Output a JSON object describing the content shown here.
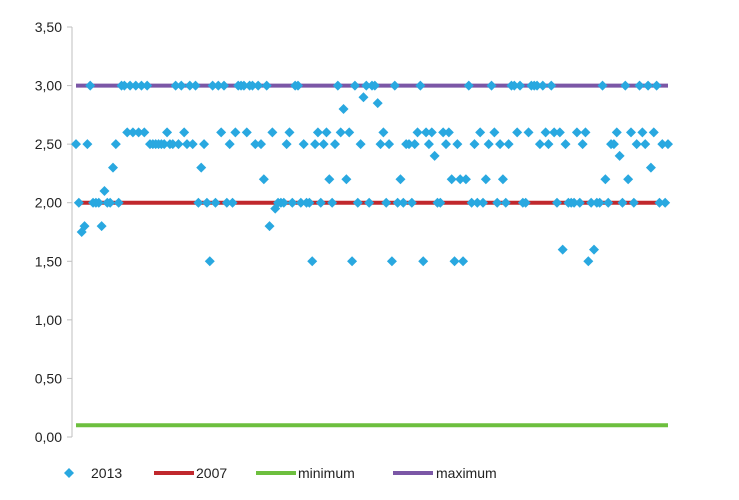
{
  "chart_data": {
    "type": "line",
    "title": "",
    "xlabel": "",
    "ylabel": "",
    "ylim": [
      0,
      3.5
    ],
    "y_ticks": [
      0,
      0.5,
      1,
      1.5,
      2,
      2.5,
      3,
      3.5
    ],
    "y_tick_labels": [
      "0,00",
      "0,50",
      "1,00",
      "1,50",
      "2,00",
      "2,50",
      "3,00",
      "3,50"
    ],
    "grid": false,
    "legend_position": "bottom",
    "legend": [
      {
        "name": "2013",
        "type": "scatter",
        "color": "#29a8e0"
      },
      {
        "name": "2007",
        "type": "line",
        "color": "#c0282d"
      },
      {
        "name": "minimum",
        "type": "line",
        "color": "#6dbf3e"
      },
      {
        "name": "maximum",
        "type": "line",
        "color": "#7b57a6"
      }
    ],
    "reference_lines": [
      {
        "name": "2007",
        "value": 2.0,
        "color": "#c0282d"
      },
      {
        "name": "minimum",
        "value": 0.1,
        "color": "#6dbf3e"
      },
      {
        "name": "maximum",
        "value": 3.0,
        "color": "#7b57a6"
      }
    ],
    "series": [
      {
        "name": "2013",
        "type": "scatter",
        "color": "#29a8e0",
        "points": [
          [
            1,
            2.5
          ],
          [
            2,
            2.0
          ],
          [
            3,
            1.75
          ],
          [
            4,
            1.8
          ],
          [
            5,
            2.5
          ],
          [
            6,
            3.0
          ],
          [
            7,
            2.0
          ],
          [
            8,
            2.0
          ],
          [
            9,
            2.0
          ],
          [
            10,
            1.8
          ],
          [
            11,
            2.1
          ],
          [
            12,
            2.0
          ],
          [
            13,
            2.0
          ],
          [
            14,
            2.3
          ],
          [
            15,
            2.5
          ],
          [
            16,
            2.0
          ],
          [
            17,
            3.0
          ],
          [
            18,
            3.0
          ],
          [
            19,
            2.6
          ],
          [
            20,
            3.0
          ],
          [
            21,
            2.6
          ],
          [
            22,
            3.0
          ],
          [
            23,
            2.6
          ],
          [
            24,
            3.0
          ],
          [
            25,
            2.6
          ],
          [
            26,
            3.0
          ],
          [
            27,
            2.5
          ],
          [
            28,
            2.5
          ],
          [
            29,
            2.5
          ],
          [
            30,
            2.5
          ],
          [
            31,
            2.5
          ],
          [
            32,
            2.5
          ],
          [
            33,
            2.6
          ],
          [
            34,
            2.5
          ],
          [
            35,
            2.5
          ],
          [
            36,
            3.0
          ],
          [
            37,
            2.5
          ],
          [
            38,
            3.0
          ],
          [
            39,
            2.6
          ],
          [
            40,
            2.5
          ],
          [
            41,
            3.0
          ],
          [
            42,
            2.5
          ],
          [
            43,
            3.0
          ],
          [
            44,
            2.0
          ],
          [
            45,
            2.3
          ],
          [
            46,
            2.5
          ],
          [
            47,
            2.0
          ],
          [
            48,
            1.5
          ],
          [
            49,
            3.0
          ],
          [
            50,
            2.0
          ],
          [
            51,
            3.0
          ],
          [
            52,
            2.6
          ],
          [
            53,
            3.0
          ],
          [
            54,
            2.0
          ],
          [
            55,
            2.5
          ],
          [
            56,
            2.0
          ],
          [
            57,
            2.6
          ],
          [
            58,
            3.0
          ],
          [
            59,
            3.0
          ],
          [
            60,
            3.0
          ],
          [
            61,
            2.6
          ],
          [
            62,
            3.0
          ],
          [
            63,
            3.0
          ],
          [
            64,
            2.5
          ],
          [
            65,
            3.0
          ],
          [
            66,
            2.5
          ],
          [
            67,
            2.2
          ],
          [
            68,
            3.0
          ],
          [
            69,
            1.8
          ],
          [
            70,
            2.6
          ],
          [
            71,
            1.95
          ],
          [
            72,
            2.0
          ],
          [
            73,
            2.0
          ],
          [
            74,
            2.0
          ],
          [
            75,
            2.5
          ],
          [
            76,
            2.6
          ],
          [
            77,
            2.0
          ],
          [
            78,
            3.0
          ],
          [
            79,
            3.0
          ],
          [
            80,
            2.0
          ],
          [
            81,
            2.5
          ],
          [
            82,
            2.0
          ],
          [
            83,
            2.0
          ],
          [
            84,
            1.5
          ],
          [
            85,
            2.5
          ],
          [
            86,
            2.6
          ],
          [
            87,
            2.0
          ],
          [
            88,
            2.5
          ],
          [
            89,
            2.6
          ],
          [
            90,
            2.2
          ],
          [
            91,
            2.0
          ],
          [
            92,
            2.5
          ],
          [
            93,
            3.0
          ],
          [
            94,
            2.6
          ],
          [
            95,
            2.8
          ],
          [
            96,
            2.2
          ],
          [
            97,
            2.6
          ],
          [
            98,
            1.5
          ],
          [
            99,
            3.0
          ],
          [
            100,
            2.0
          ],
          [
            101,
            2.5
          ],
          [
            102,
            2.9
          ],
          [
            103,
            3.0
          ],
          [
            104,
            2.0
          ],
          [
            105,
            3.0
          ],
          [
            106,
            3.0
          ],
          [
            107,
            2.85
          ],
          [
            108,
            2.5
          ],
          [
            109,
            2.6
          ],
          [
            110,
            2.0
          ],
          [
            111,
            2.5
          ],
          [
            112,
            1.5
          ],
          [
            113,
            3.0
          ],
          [
            114,
            2.0
          ],
          [
            115,
            2.2
          ],
          [
            116,
            2.0
          ],
          [
            117,
            2.5
          ],
          [
            118,
            2.5
          ],
          [
            119,
            2.0
          ],
          [
            120,
            2.5
          ],
          [
            121,
            2.6
          ],
          [
            122,
            3.0
          ],
          [
            123,
            1.5
          ],
          [
            124,
            2.6
          ],
          [
            125,
            2.5
          ],
          [
            126,
            2.6
          ],
          [
            127,
            2.4
          ],
          [
            128,
            2.0
          ],
          [
            129,
            2.0
          ],
          [
            130,
            2.6
          ],
          [
            131,
            2.5
          ],
          [
            132,
            2.6
          ],
          [
            133,
            2.2
          ],
          [
            134,
            1.5
          ],
          [
            135,
            2.5
          ],
          [
            136,
            2.2
          ],
          [
            137,
            1.5
          ],
          [
            138,
            2.2
          ],
          [
            139,
            3.0
          ],
          [
            140,
            2.0
          ],
          [
            141,
            2.5
          ],
          [
            142,
            2.0
          ],
          [
            143,
            2.6
          ],
          [
            144,
            2.0
          ],
          [
            145,
            2.2
          ],
          [
            146,
            2.5
          ],
          [
            147,
            3.0
          ],
          [
            148,
            2.6
          ],
          [
            149,
            2.0
          ],
          [
            150,
            2.5
          ],
          [
            151,
            2.2
          ],
          [
            152,
            2.0
          ],
          [
            153,
            2.5
          ],
          [
            154,
            3.0
          ],
          [
            155,
            3.0
          ],
          [
            156,
            2.6
          ],
          [
            157,
            3.0
          ],
          [
            158,
            2.0
          ],
          [
            159,
            2.0
          ],
          [
            160,
            2.6
          ],
          [
            161,
            3.0
          ],
          [
            162,
            3.0
          ],
          [
            163,
            3.0
          ],
          [
            164,
            2.5
          ],
          [
            165,
            3.0
          ],
          [
            166,
            2.6
          ],
          [
            167,
            2.5
          ],
          [
            168,
            3.0
          ],
          [
            169,
            2.6
          ],
          [
            170,
            2.0
          ],
          [
            171,
            2.6
          ],
          [
            172,
            1.6
          ],
          [
            173,
            2.5
          ],
          [
            174,
            2.0
          ],
          [
            175,
            2.0
          ],
          [
            176,
            2.0
          ],
          [
            177,
            2.6
          ],
          [
            178,
            2.0
          ],
          [
            179,
            2.5
          ],
          [
            180,
            2.6
          ],
          [
            181,
            1.5
          ],
          [
            182,
            2.0
          ],
          [
            183,
            1.6
          ],
          [
            184,
            2.0
          ],
          [
            185,
            2.0
          ],
          [
            186,
            3.0
          ],
          [
            187,
            2.2
          ],
          [
            188,
            2.0
          ],
          [
            189,
            2.5
          ],
          [
            190,
            2.5
          ],
          [
            191,
            2.6
          ],
          [
            192,
            2.4
          ],
          [
            193,
            2.0
          ],
          [
            194,
            3.0
          ],
          [
            195,
            2.2
          ],
          [
            196,
            2.6
          ],
          [
            197,
            2.0
          ],
          [
            198,
            2.5
          ],
          [
            199,
            3.0
          ],
          [
            200,
            2.6
          ],
          [
            201,
            2.5
          ],
          [
            202,
            3.0
          ],
          [
            203,
            2.3
          ],
          [
            204,
            2.6
          ],
          [
            205,
            3.0
          ],
          [
            206,
            2.0
          ],
          [
            207,
            2.5
          ],
          [
            208,
            2.0
          ],
          [
            209,
            2.5
          ]
        ]
      }
    ]
  }
}
